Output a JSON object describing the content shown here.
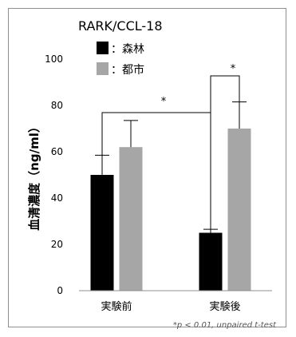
{
  "chart_data": {
    "type": "bar",
    "title": "RARK/CCL-18",
    "ylabel": "血清濃度（ng/ml）",
    "ylim": [
      0,
      100
    ],
    "yticks": [
      0,
      20,
      40,
      60,
      80,
      100
    ],
    "categories": [
      "実験前",
      "実験後"
    ],
    "series": [
      {
        "name": "：森林",
        "values": [
          50,
          25
        ],
        "errors": [
          8.5,
          1.5
        ],
        "color": "#000000"
      },
      {
        "name": "：都市",
        "values": [
          62,
          70
        ],
        "errors": [
          11.5,
          11.5
        ],
        "color": "#a6a6a6"
      }
    ],
    "significance": [
      "*",
      "*"
    ],
    "footnote": "*p < 0.01, unpaired t-test",
    "grid": false,
    "legend_position": "top-left"
  }
}
